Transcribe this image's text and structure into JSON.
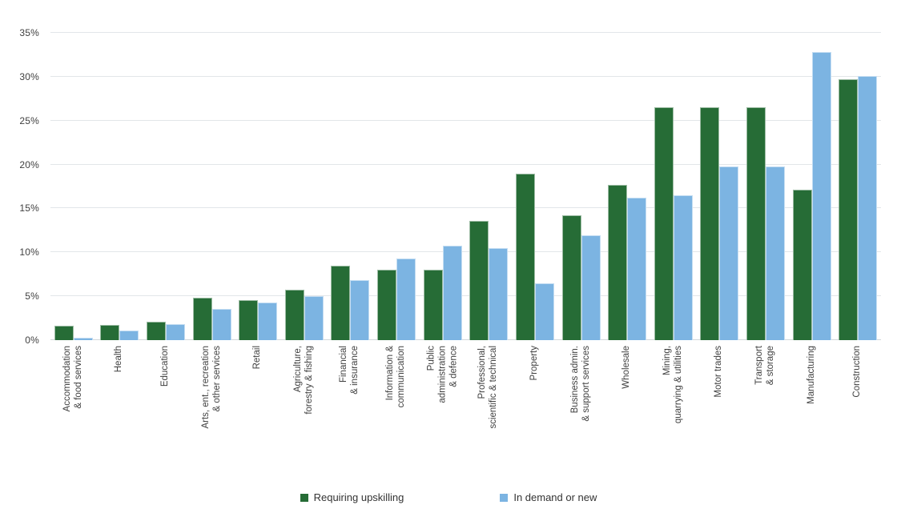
{
  "chart_data": {
    "type": "bar",
    "title": "",
    "xlabel": "",
    "ylabel": "",
    "ylim": [
      0,
      35
    ],
    "y_ticks": [
      "0%",
      "5%",
      "10%",
      "15%",
      "20%",
      "25%",
      "30%",
      "35%"
    ],
    "grid": true,
    "legend_position": "bottom",
    "categories": [
      "Accommodation\n& food services",
      "Health",
      "Education",
      "Arts, ent., recreation\n& other services",
      "Retail",
      "Agriculture,\nforestry & fishing",
      "Financial\n& insurance",
      "Information &\ncommunication",
      "Public\nadministration\n& defence",
      "Professional,\nscientific & technical",
      "Property",
      "Business admin.\n& support services",
      "Wholesale",
      "Mining,\nquarrying & utilities",
      "Motor trades",
      "Transport\n& storage",
      "Manufacturing",
      "Construction"
    ],
    "series": [
      {
        "name": "Requiring upskilling",
        "color": "#266c36",
        "values": [
          1.6,
          1.7,
          2.1,
          4.8,
          4.6,
          5.7,
          8.5,
          8.0,
          8.0,
          13.6,
          19.0,
          14.2,
          17.7,
          26.5,
          26.5,
          26.5,
          17.1,
          29.7
        ]
      },
      {
        "name": "In demand or new",
        "color": "#7cb4e2",
        "values": [
          0.3,
          1.1,
          1.8,
          3.6,
          4.3,
          5.0,
          6.8,
          9.3,
          10.8,
          10.5,
          6.5,
          11.9,
          16.2,
          16.5,
          19.8,
          19.8,
          32.8,
          30.1
        ]
      }
    ]
  },
  "style": {
    "gridline_color": "#e2e6e9",
    "baseline_color": "#d2d7da",
    "tick_text_color": "#404040",
    "label_text_color": "#3f3f3f",
    "background": "#ffffff"
  }
}
